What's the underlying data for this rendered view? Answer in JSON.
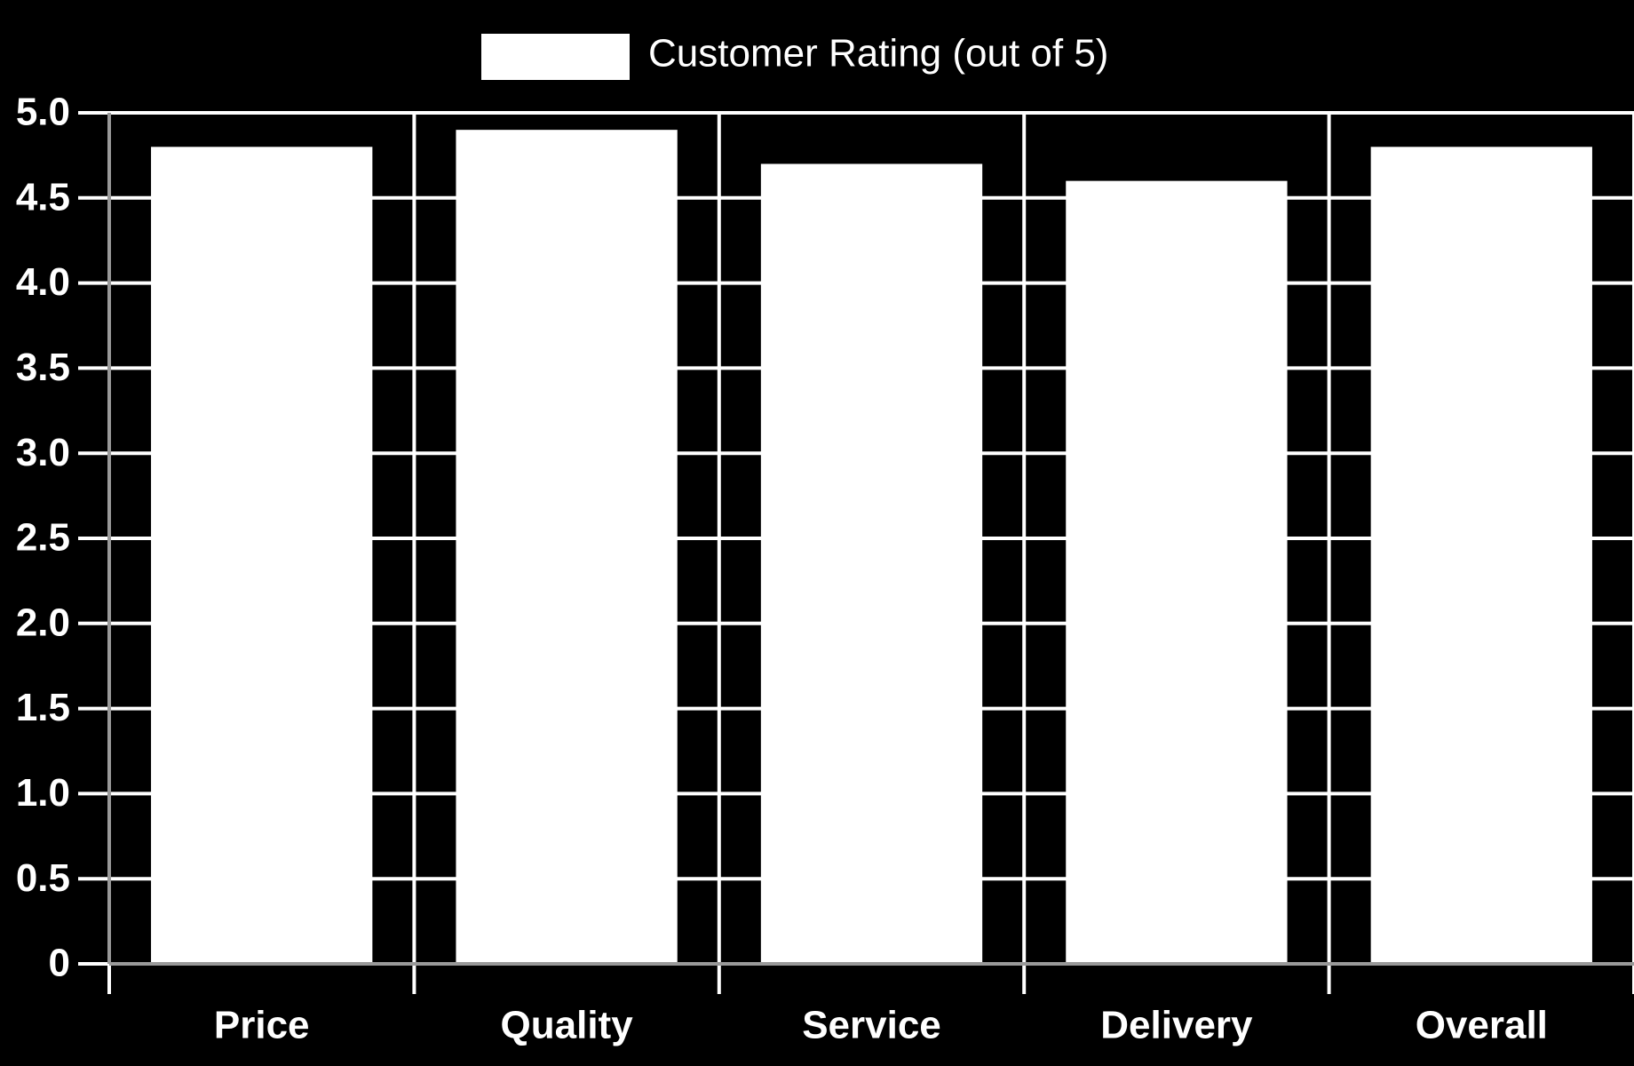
{
  "chart_data": {
    "type": "bar",
    "categories": [
      "Price",
      "Quality",
      "Service",
      "Delivery",
      "Overall"
    ],
    "series": [
      {
        "name": "Customer Rating (out of 5)",
        "color": "#ffffff",
        "values": [
          4.8,
          4.9,
          4.7,
          4.6,
          4.8
        ]
      }
    ],
    "ylim": [
      0,
      5
    ],
    "yticks": [
      0,
      0.5,
      {
        "value": 1,
        "label": "1.0"
      },
      1.5,
      {
        "value": 2,
        "label": "2.0"
      },
      2.5,
      {
        "value": 3,
        "label": "3.0"
      },
      3.5,
      {
        "value": 4,
        "label": "4.0"
      },
      4.5,
      {
        "value": 5,
        "label": "5.0"
      }
    ],
    "grid": true,
    "legend": "top"
  }
}
